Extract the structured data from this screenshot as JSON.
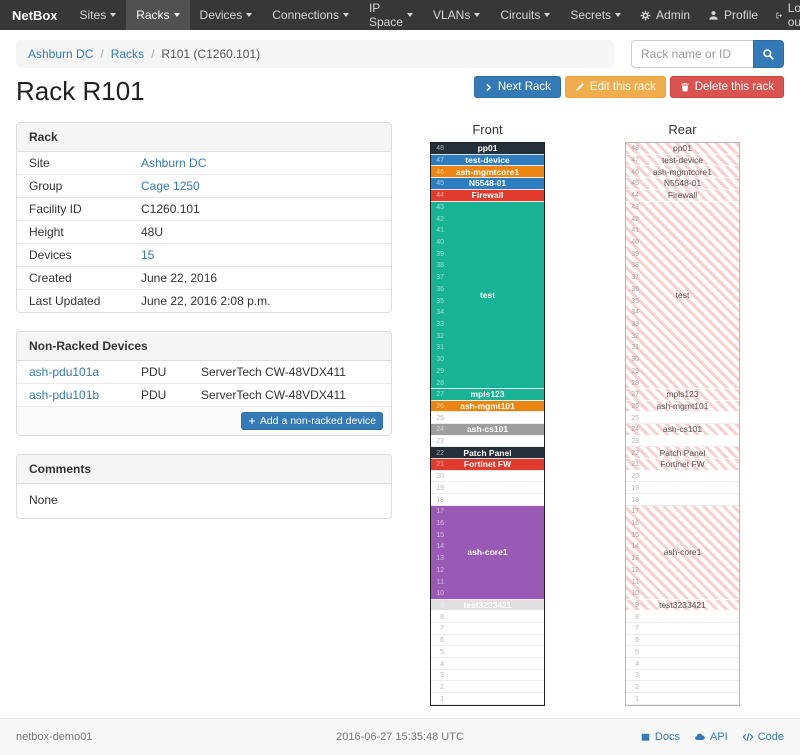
{
  "navbar": {
    "brand": "NetBox",
    "items": [
      {
        "label": "Sites"
      },
      {
        "label": "Racks"
      },
      {
        "label": "Devices"
      },
      {
        "label": "Connections"
      },
      {
        "label": "IP Space"
      },
      {
        "label": "VLANs"
      },
      {
        "label": "Circuits"
      },
      {
        "label": "Secrets"
      }
    ],
    "right": [
      {
        "label": "Admin"
      },
      {
        "label": "Profile"
      },
      {
        "label": "Log out"
      }
    ]
  },
  "breadcrumb": {
    "separator": "/",
    "items": [
      "Ashburn DC",
      "Racks",
      "R101 (C1260.101)"
    ]
  },
  "search": {
    "placeholder": "Rack name or ID"
  },
  "actions": {
    "next": "Next Rack",
    "edit": "Edit this rack",
    "delete": "Delete this rack"
  },
  "page_title": "Rack R101",
  "rack_panel": {
    "title": "Rack",
    "rows": [
      {
        "label": "Site",
        "value": "Ashburn DC"
      },
      {
        "label": "Group",
        "value": "Cage 1250"
      },
      {
        "label": "Facility ID",
        "value": "C1260.101"
      },
      {
        "label": "Height",
        "value": "48U"
      },
      {
        "label": "Devices",
        "value": "15"
      },
      {
        "label": "Created",
        "value": "June 22, 2016"
      },
      {
        "label": "Last Updated",
        "value": "June 22, 2016 2:08 p.m."
      }
    ]
  },
  "non_racked": {
    "title": "Non-Racked Devices",
    "rows": [
      {
        "name": "ash-pdu101a",
        "role": "PDU",
        "type": "ServerTech CW-48VDX411"
      },
      {
        "name": "ash-pdu101b",
        "role": "PDU",
        "type": "ServerTech CW-48VDX411"
      }
    ],
    "add_label": "Add a non-racked device"
  },
  "comments": {
    "title": "Comments",
    "body": "None"
  },
  "elevation": {
    "front_title": "Front",
    "rear_title": "Rear",
    "units": 48,
    "colors": {
      "dark": "#252f39",
      "blue": "#2d7dc1",
      "orange": "#ea8513",
      "red": "#e23b2e",
      "teal": "#18b294",
      "gray": "#9e9e9e",
      "purple": "#9b59b6",
      "lightgray": "#e0e0e0"
    },
    "devices": [
      {
        "name": "pp01",
        "u": 48,
        "h": 1,
        "color": "dark"
      },
      {
        "name": "test-device",
        "u": 47,
        "h": 1,
        "color": "blue"
      },
      {
        "name": "ash-mgmtcore1",
        "u": 46,
        "h": 1,
        "color": "orange"
      },
      {
        "name": "N5548-01",
        "u": 45,
        "h": 1,
        "color": "blue"
      },
      {
        "name": "Firewall",
        "u": 44,
        "h": 1,
        "color": "red"
      },
      {
        "name": "test",
        "u": 43,
        "h": 16,
        "color": "teal"
      },
      {
        "name": "mpls123",
        "u": 27,
        "h": 1,
        "color": "teal"
      },
      {
        "name": "ash-mgmt101",
        "u": 26,
        "h": 1,
        "color": "orange"
      },
      {
        "name": "ash-cs101",
        "u": 24,
        "h": 1,
        "color": "gray"
      },
      {
        "name": "Patch Panel",
        "u": 22,
        "h": 1,
        "color": "dark"
      },
      {
        "name": "Fortinet FW",
        "u": 21,
        "h": 1,
        "color": "red"
      },
      {
        "name": "ash-core1",
        "u": 17,
        "h": 8,
        "color": "purple"
      },
      {
        "name": "test3233421",
        "u": 9,
        "h": 1,
        "color": "lightgray"
      }
    ]
  },
  "footer": {
    "hostname": "netbox-demo01",
    "timestamp": "2016-06-27 15:35:48 UTC",
    "links": [
      {
        "label": "Docs"
      },
      {
        "label": "API"
      },
      {
        "label": "Code"
      }
    ]
  }
}
